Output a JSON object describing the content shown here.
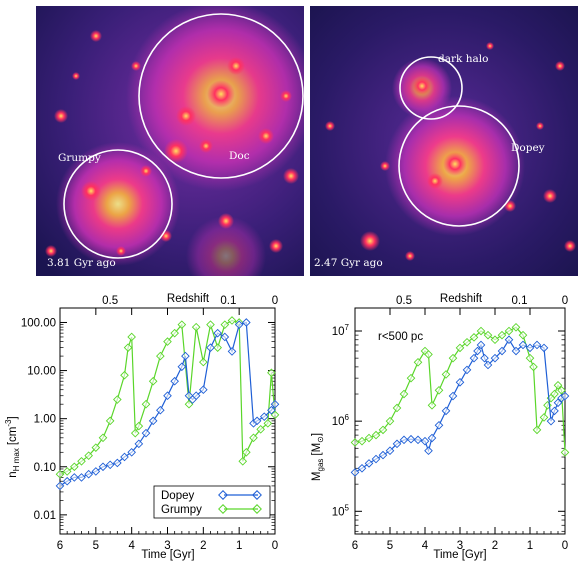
{
  "panels": {
    "left": {
      "labels": [
        "Grumpy",
        "Doc"
      ],
      "time_label": "3.81 Gyr ago"
    },
    "right": {
      "labels": [
        "dark halo",
        "Dopey"
      ],
      "time_label": "2.47 Gyr ago"
    }
  },
  "colors": {
    "dopey": "#1f5fd6",
    "grumpy": "#5ad62a",
    "sim_bg": "#1a1450",
    "sim_core": "#ffe04a"
  },
  "chart_data": [
    {
      "type": "line",
      "xlabel": "Time [Gyr]",
      "ylabel_main": "n",
      "ylabel_sub": "H max",
      "ylabel_unit": "[cm",
      "ylabel_exp": "-3",
      "ylabel_close": "]",
      "top_axis_label": "Redshift",
      "top_ticks": [
        "0.5",
        "0.1",
        "0"
      ],
      "top_tick_times": [
        4.6,
        1.3,
        0
      ],
      "xlim": [
        6,
        0
      ],
      "x_ticks": [
        "6",
        "5",
        "4",
        "3",
        "2",
        "1",
        "0"
      ],
      "ylim": [
        0.004,
        200
      ],
      "y_scale": "log",
      "y_ticks": [
        "100.00",
        "10.00",
        "1.00",
        "0.10",
        "0.01"
      ],
      "y_tick_values": [
        100,
        10,
        1,
        0.1,
        0.01
      ],
      "legend": [
        "Dopey",
        "Grumpy"
      ],
      "series": [
        {
          "name": "Dopey",
          "x": [
            6.0,
            5.8,
            5.6,
            5.4,
            5.2,
            5.0,
            4.8,
            4.6,
            4.4,
            4.2,
            4.0,
            3.8,
            3.6,
            3.4,
            3.2,
            3.0,
            2.8,
            2.6,
            2.5,
            2.4,
            2.3,
            2.2,
            2.0,
            1.8,
            1.6,
            1.4,
            1.2,
            1.0,
            0.8,
            0.6,
            0.5,
            0.3,
            0.1,
            0.0
          ],
          "y": [
            0.04,
            0.05,
            0.06,
            0.06,
            0.07,
            0.08,
            0.1,
            0.11,
            0.12,
            0.16,
            0.2,
            0.3,
            0.5,
            0.9,
            1.5,
            3,
            6,
            12,
            20,
            3,
            2.5,
            3,
            4,
            30,
            60,
            50,
            25,
            90,
            100,
            0.8,
            0.9,
            1.1,
            1.5,
            2
          ]
        },
        {
          "name": "Grumpy",
          "x": [
            6.0,
            5.8,
            5.6,
            5.4,
            5.2,
            5.0,
            4.8,
            4.6,
            4.4,
            4.2,
            4.1,
            4.0,
            3.9,
            3.8,
            3.6,
            3.4,
            3.2,
            3.0,
            2.8,
            2.6,
            2.4,
            2.2,
            2.0,
            1.8,
            1.6,
            1.4,
            1.2,
            1.0,
            0.9,
            0.8,
            0.6,
            0.4,
            0.2,
            0.1,
            0.0
          ],
          "y": [
            0.07,
            0.08,
            0.1,
            0.13,
            0.17,
            0.25,
            0.4,
            0.9,
            2.5,
            8,
            30,
            50,
            0.5,
            0.7,
            2,
            6,
            20,
            40,
            60,
            90,
            2,
            80,
            15,
            90,
            30,
            90,
            110,
            100,
            0.13,
            0.2,
            0.4,
            0.6,
            0.8,
            9,
            1.2
          ]
        }
      ]
    },
    {
      "type": "line",
      "xlabel": "Time [Gyr]",
      "ylabel_main": "M",
      "ylabel_sub": "gas",
      "ylabel_unit": "[M",
      "ylabel_exp": "",
      "ylabel_close": "]",
      "top_axis_label": "Redshift",
      "top_ticks": [
        "0.5",
        "0.1",
        "0"
      ],
      "top_tick_times": [
        4.6,
        1.3,
        0
      ],
      "annotation": "r<500 pc",
      "xlim": [
        6,
        0
      ],
      "x_ticks": [
        "6",
        "5",
        "4",
        "3",
        "2",
        "1",
        "0"
      ],
      "ylim": [
        56000,
        18000000
      ],
      "y_scale": "log",
      "y_tick_values": [
        100000,
        1000000,
        10000000
      ],
      "y_tick_exps": [
        "5",
        "6",
        "7"
      ],
      "series": [
        {
          "name": "Dopey",
          "x": [
            6.0,
            5.8,
            5.6,
            5.4,
            5.2,
            5.0,
            4.8,
            4.6,
            4.4,
            4.2,
            4.0,
            3.9,
            3.8,
            3.6,
            3.4,
            3.2,
            3.0,
            2.8,
            2.6,
            2.5,
            2.4,
            2.3,
            2.2,
            2.0,
            1.8,
            1.6,
            1.4,
            1.2,
            1.0,
            0.8,
            0.6,
            0.4,
            0.3,
            0.2,
            0.1,
            0.0
          ],
          "y": [
            270000,
            300000,
            340000,
            380000,
            420000,
            470000,
            560000,
            620000,
            630000,
            620000,
            600000,
            470000,
            650000,
            900000,
            1300000,
            1900000,
            2700000,
            3700000,
            5000000,
            6000000,
            7000000,
            5000000,
            4200000,
            5000000,
            6000000,
            8000000,
            6000000,
            7000000,
            6500000,
            7000000,
            6500000,
            1000000,
            1300000,
            1600000,
            1800000,
            1900000
          ]
        },
        {
          "name": "Grumpy",
          "x": [
            6.0,
            5.8,
            5.6,
            5.4,
            5.2,
            5.0,
            4.8,
            4.6,
            4.4,
            4.2,
            4.0,
            3.9,
            3.8,
            3.6,
            3.4,
            3.2,
            3.0,
            2.8,
            2.6,
            2.4,
            2.2,
            2.0,
            1.8,
            1.6,
            1.4,
            1.2,
            1.0,
            0.9,
            0.8,
            0.6,
            0.5,
            0.4,
            0.3,
            0.2,
            0.1,
            0.0
          ],
          "y": [
            580000,
            600000,
            650000,
            700000,
            800000,
            1000000,
            1400000,
            2000000,
            3000000,
            4500000,
            6000000,
            5500000,
            1500000,
            2200000,
            3300000,
            5000000,
            6500000,
            7500000,
            8500000,
            10000000,
            9000000,
            8000000,
            9000000,
            10000000,
            11000000,
            9000000,
            5000000,
            4000000,
            800000,
            1100000,
            1500000,
            1800000,
            2000000,
            2500000,
            2200000,
            450000
          ]
        }
      ]
    }
  ]
}
